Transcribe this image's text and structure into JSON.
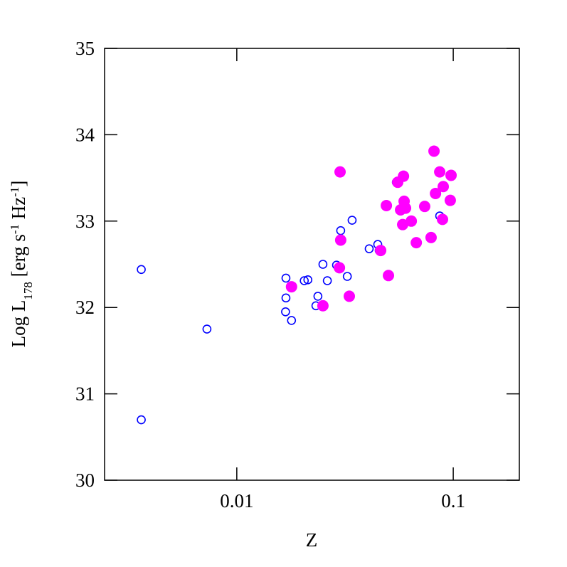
{
  "chart_data": {
    "type": "scatter",
    "xscale": "log",
    "xlabel": "Z",
    "ylabel": [
      "Log L",
      "178",
      " [erg s",
      "-1",
      " Hz",
      "-1",
      "]"
    ],
    "xlim": [
      0.00245,
      0.202
    ],
    "ylim": [
      30,
      35
    ],
    "xticks": [
      0.01,
      0.1
    ],
    "yticks": [
      30,
      31,
      32,
      33,
      34,
      35
    ],
    "series": [
      {
        "color": "#0000ff",
        "filled": false,
        "x": [
          0.00362,
          0.00362,
          0.00728,
          0.01687,
          0.01687,
          0.0168,
          0.0179,
          0.0205,
          0.0213,
          0.0237,
          0.0232,
          0.025,
          0.0262,
          0.0289,
          0.0302,
          0.0302,
          0.0324,
          0.0341,
          0.0409,
          0.0448,
          0.0455,
          0.0546,
          0.0866
        ],
        "values": [
          32.44,
          30.7,
          31.75,
          32.34,
          32.11,
          31.95,
          31.85,
          32.31,
          32.32,
          32.13,
          32.02,
          32.5,
          32.31,
          32.49,
          32.79,
          32.89,
          32.36,
          33.01,
          32.68,
          32.73,
          32.66,
          33.45,
          33.06
        ]
      },
      {
        "color": "#ff00ff",
        "filled": true,
        "x": [
          0.03,
          0.0179,
          0.025,
          0.0302,
          0.0298,
          0.0331,
          0.0462,
          0.0491,
          0.0502,
          0.0554,
          0.0589,
          0.0571,
          0.0593,
          0.0602,
          0.0584,
          0.064,
          0.0675,
          0.0738,
          0.079,
          0.0815,
          0.0828,
          0.0866,
          0.0899,
          0.0892,
          0.0977,
          0.0969
        ],
        "values": [
          33.57,
          32.24,
          32.02,
          32.78,
          32.46,
          32.13,
          32.66,
          33.18,
          32.37,
          33.45,
          33.52,
          33.13,
          33.23,
          33.15,
          32.96,
          33.0,
          32.75,
          33.17,
          32.81,
          33.81,
          33.32,
          33.57,
          33.4,
          33.02,
          33.53,
          33.24
        ]
      }
    ]
  }
}
